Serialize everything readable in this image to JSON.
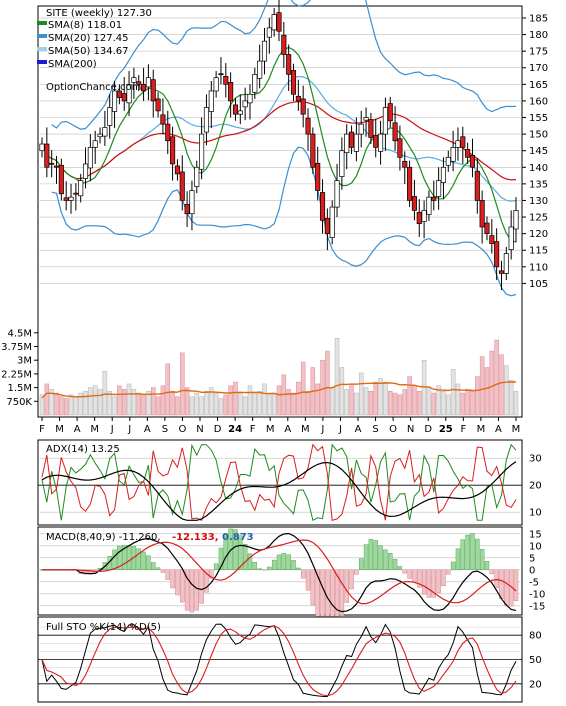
{
  "header": {
    "symbol_line": "SITE (weekly) 127.30",
    "watermark": "OptionChance.com",
    "legend": [
      {
        "label": "SMA(8) 118.01",
        "color": "#1f8a1f"
      },
      {
        "label": "SMA(20) 127.45",
        "color": "#3a8fd0"
      },
      {
        "label": "SMA(50) 134.67",
        "color": "#9fd0ec"
      },
      {
        "label": "SMA(200)",
        "color": "#1a1ad8"
      }
    ]
  },
  "chart_data": [
    {
      "type": "candlestick",
      "panel": "price",
      "ylim": [
        100,
        188
      ],
      "y_ticks": [
        "105",
        "110",
        "115",
        "120",
        "125",
        "130",
        "135",
        "140",
        "145",
        "150",
        "155",
        "160",
        "165",
        "170",
        "175",
        "180",
        "185"
      ],
      "close": [
        147,
        140,
        141,
        140,
        132,
        130,
        131,
        132,
        136,
        141,
        146,
        148,
        150,
        152,
        158,
        163,
        161,
        160,
        165,
        167,
        165,
        163,
        167,
        160,
        157,
        153,
        148,
        141,
        138,
        130,
        126,
        133,
        140,
        150,
        158,
        163,
        167,
        168,
        165,
        160,
        156,
        157,
        160,
        162,
        168,
        172,
        178,
        182,
        186,
        181,
        174,
        168,
        162,
        160,
        156,
        150,
        140,
        133,
        124,
        120,
        128,
        136,
        145,
        150,
        146,
        150,
        153,
        155,
        149,
        146,
        150,
        158,
        154,
        148,
        143,
        140,
        130,
        127,
        123,
        127,
        131,
        130,
        136,
        140,
        143,
        146,
        148,
        146,
        143,
        140,
        130,
        122,
        120,
        117,
        110,
        108,
        114,
        122,
        127
      ],
      "volume_ylim": [
        0,
        5200000
      ],
      "volume_ticks": [
        "750K",
        "1.5M",
        "2.25M",
        "3M",
        "3.75M",
        "4.5M"
      ],
      "volume": [
        1.1,
        1.7,
        1.4,
        1.2,
        1.0,
        0.9,
        1.1,
        1.0,
        1.2,
        1.3,
        1.5,
        1.6,
        1.4,
        2.4,
        1.3,
        1.0,
        1.6,
        1.4,
        1.7,
        1.4,
        1.2,
        1.1,
        1.3,
        1.5,
        1.0,
        1.6,
        2.8,
        1.3,
        1.0,
        3.4,
        1.5,
        1.0,
        1.2,
        1.0,
        1.3,
        1.5,
        1.2,
        0.9,
        1.1,
        1.6,
        1.8,
        1.2,
        1.0,
        1.6,
        1.2,
        1.3,
        1.7,
        1.1,
        1.2,
        1.6,
        2.2,
        1.4,
        1.2,
        1.8,
        2.9,
        1.3,
        2.6,
        1.7,
        3.0,
        3.5,
        1.5,
        4.2,
        2.6,
        1.4,
        1.6,
        1.2,
        2.3,
        1.5,
        1.3,
        1.8,
        2.0,
        1.8,
        1.3,
        1.2,
        1.1,
        1.4,
        2.1,
        1.6,
        1.3,
        3.0,
        1.5,
        1.2,
        1.6,
        1.3,
        1.1,
        2.5,
        1.7,
        1.2,
        1.4,
        1.3,
        2.1,
        3.2,
        2.6,
        3.5,
        4.1,
        3.3,
        2.7,
        1.9,
        1.3
      ],
      "volume_ma_fraction": 0.32,
      "x_labels": [
        "F",
        "M",
        "A",
        "M",
        "J",
        "J",
        "A",
        "S",
        "O",
        "N",
        "D",
        "24",
        "F",
        "M",
        "A",
        "M",
        "J",
        "J",
        "A",
        "S",
        "O",
        "N",
        "D",
        "25",
        "F",
        "M",
        "A",
        "M"
      ]
    },
    {
      "type": "line",
      "panel": "adx",
      "label": "ADX(14) 13.25",
      "ylim": [
        6,
        36
      ],
      "y_ticks": [
        "10",
        "20",
        "30"
      ]
    },
    {
      "type": "bar+line",
      "panel": "macd",
      "label": "MACD(8,40,9) -11.260,",
      "signal_label": "-12.133,",
      "hist_label": "0.873",
      "ylim": [
        -18,
        17
      ],
      "y_ticks": [
        "15",
        "10",
        "5",
        "0",
        "-5",
        "-10",
        "-15"
      ]
    },
    {
      "type": "line",
      "panel": "stochastic",
      "label": "Full STO %K(14) %D(5)",
      "ylim": [
        0,
        100
      ],
      "y_ticks": [
        "20",
        "50",
        "80"
      ]
    }
  ]
}
